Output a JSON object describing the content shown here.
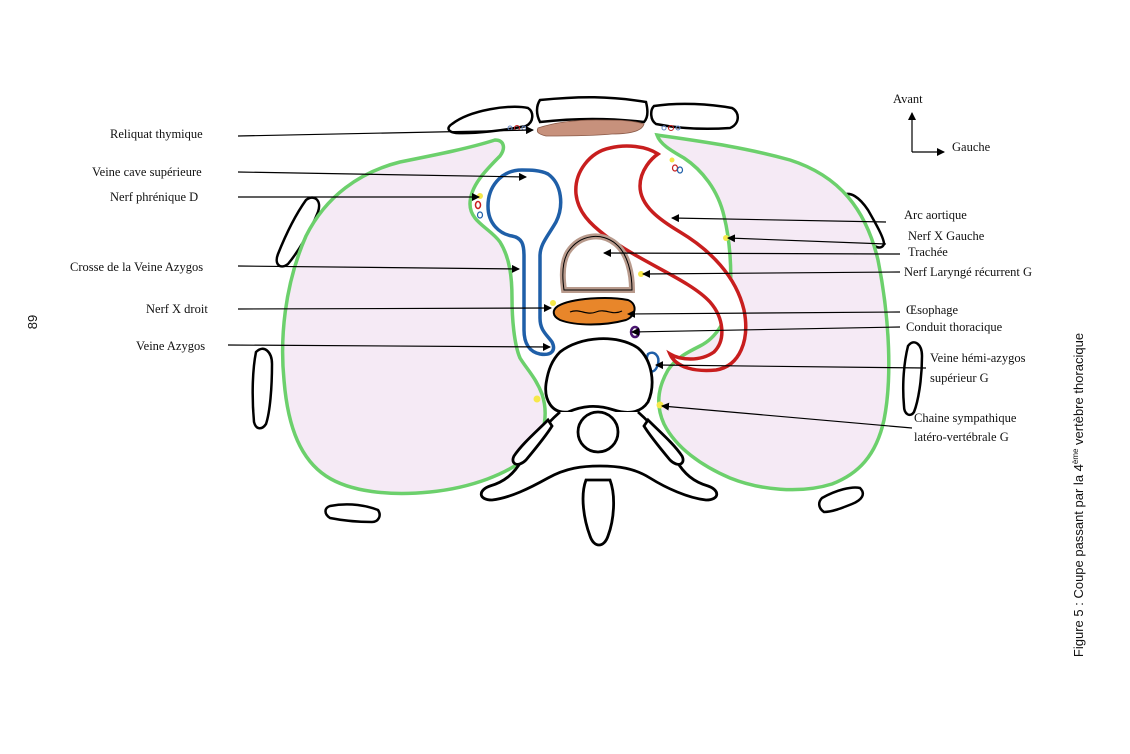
{
  "page_number": "89",
  "caption": {
    "prefix": "Figure 5 : Coupe passant par la 4",
    "superscript": "ème",
    "suffix": " vertèbre thoracique"
  },
  "orientation": {
    "front": "Avant",
    "left": "Gauche"
  },
  "labels": {
    "reliquat_thymique": "Reliquat thymique",
    "veine_cave_superieure": "Veine cave supérieure",
    "nerf_phrenique_d": "Nerf phrénique D",
    "crosse_veine_azygos": "Crosse de la Veine Azygos",
    "nerf_x_droit": "Nerf X droit",
    "veine_azygos": "Veine Azygos",
    "arc_aortique": "Arc aortique",
    "nerf_x_gauche": "Nerf X Gauche",
    "trachee": "Trachée",
    "nerf_laryngé_recurrent_g": "Nerf Laryngé récurrent G",
    "oesophage": "Œsophage",
    "conduit_thoracique": "Conduit thoracique",
    "veine_hemi_azygos_1": "Veine hémi-azygos",
    "veine_hemi_azygos_2": "supérieur G",
    "chaine_sympathique_1": "Chaine sympathique",
    "chaine_sympathique_2": "latéro-vertébrale G"
  },
  "colors": {
    "pleura": "#6cd06c",
    "lung": "#f5eaf5",
    "vena_cava": "#1f5fa8",
    "aorta": "#c81e1e",
    "trachea": "#b89a8c",
    "esophagus": "#e8862a",
    "thymus": "#c7917c",
    "thoracic_duct": "#4a1570",
    "nerve": "#f6e84a"
  }
}
